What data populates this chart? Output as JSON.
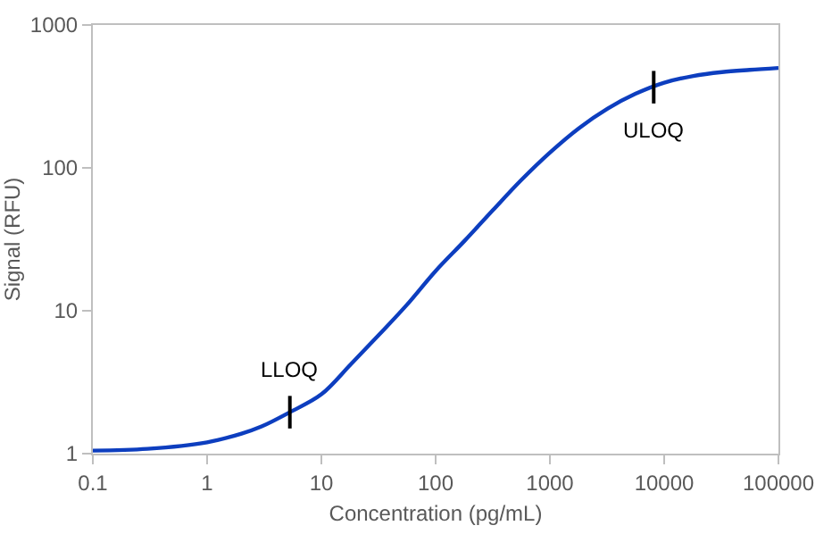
{
  "chart_data": {
    "type": "line",
    "xlabel": "Concentration (pg/mL)",
    "ylabel": "Signal (RFU)",
    "log": "xy",
    "x": [
      0.1,
      0.3,
      1,
      2,
      3,
      5.3,
      10,
      18,
      32,
      56,
      100,
      180,
      320,
      560,
      1000,
      1800,
      3200,
      5600,
      10000,
      18000,
      32000,
      56000,
      100000
    ],
    "series": [
      {
        "color": "#0d3ebf",
        "values": [
          1.05,
          1.08,
          1.2,
          1.38,
          1.55,
          1.95,
          2.6,
          4.2,
          6.8,
          11,
          19,
          31,
          51,
          82,
          128,
          190,
          260,
          330,
          395,
          440,
          468,
          485,
          500
        ]
      }
    ],
    "xlim": [
      0.1,
      100000
    ],
    "xticks": [
      0.1,
      1,
      10,
      100,
      1000,
      10000,
      100000
    ],
    "ylim": [
      1,
      1000
    ],
    "yticks": [
      1,
      10,
      100,
      1000
    ],
    "grid": false,
    "marker": "none",
    "line_style": "solid",
    "annotations": [
      {
        "text": "LLOQ",
        "x": 5.3,
        "y": 1.95
      },
      {
        "text": "ULOQ",
        "x": 8100,
        "y": 367
      }
    ]
  }
}
